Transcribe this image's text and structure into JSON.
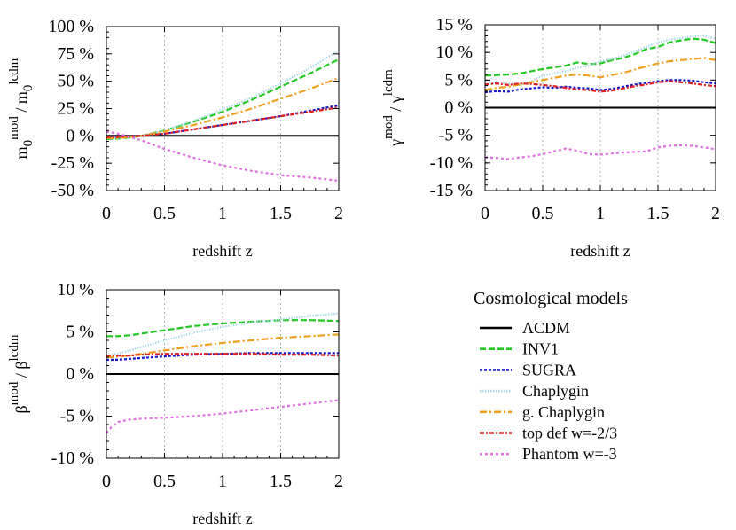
{
  "legend": {
    "title": "Cosmological models",
    "entries": [
      "ΛCDM",
      "INV1",
      "SUGRA",
      "Chaplygin",
      "g. Chaplygin",
      "top def w=-2/3",
      "Phantom w=-3"
    ]
  },
  "series_styles": [
    {
      "name": "ΛCDM",
      "color": "#000000",
      "dash": "none"
    },
    {
      "name": "INV1",
      "color": "#22c922",
      "dash": "7 3"
    },
    {
      "name": "SUGRA",
      "color": "#1818c8",
      "dash": "3 2"
    },
    {
      "name": "Chaplygin",
      "color": "#a8d8e8",
      "dash": "1.5 1.5"
    },
    {
      "name": "g. Chaplygin",
      "color": "#f0a020",
      "dash": "8 3 2 3"
    },
    {
      "name": "top def w=-2/3",
      "color": "#e02020",
      "dash": "5 2 2 2"
    },
    {
      "name": "Phantom w=-3",
      "color": "#e070e0",
      "dash": "3 3"
    }
  ],
  "chart_data": [
    {
      "type": "line",
      "xlabel": "redshift z",
      "ylabel": "m0 mod / m0 lcdm",
      "ylabel_parts": {
        "base1": "m",
        "sub1": "0",
        "sup1": "mod",
        "sep": " / ",
        "base2": "m",
        "sub2": "0",
        "sup2": "lcdm"
      },
      "xlim": [
        0,
        2
      ],
      "ylim": [
        -50,
        100
      ],
      "xticks": [
        0,
        0.5,
        1,
        1.5,
        2
      ],
      "xtick_labels": [
        "0",
        "0.5",
        "1",
        "1.5",
        "2"
      ],
      "yticks": [
        -50,
        -25,
        0,
        25,
        50,
        75,
        100
      ],
      "ytick_labels": [
        "-50 %",
        "-25 %",
        "0 %",
        "25 %",
        "50 %",
        "75 %",
        "100 %"
      ],
      "x": [
        0,
        0.1,
        0.2,
        0.3,
        0.5,
        0.75,
        1.0,
        1.25,
        1.5,
        1.75,
        2.0
      ],
      "series": [
        {
          "name": "ΛCDM",
          "values": [
            0,
            0,
            0,
            0,
            0,
            0,
            0,
            0,
            0,
            0,
            0
          ]
        },
        {
          "name": "INV1",
          "values": [
            -3,
            -2.5,
            -1.5,
            0,
            5,
            13,
            22,
            33,
            45,
            57,
            70
          ]
        },
        {
          "name": "SUGRA",
          "values": [
            -1,
            -1,
            -0.5,
            0,
            2,
            6,
            10,
            14,
            18,
            23,
            28
          ]
        },
        {
          "name": "Chaplygin",
          "values": [
            -2,
            -2,
            -1,
            0,
            5,
            14,
            24,
            35,
            48,
            62,
            78
          ]
        },
        {
          "name": "g. Chaplygin",
          "values": [
            -2,
            -2,
            -1,
            0,
            4,
            10,
            17,
            25,
            34,
            43,
            53
          ]
        },
        {
          "name": "top def w=-2/3",
          "values": [
            -1,
            -1,
            -0.5,
            0,
            2,
            6,
            10,
            14,
            18,
            22,
            26
          ]
        },
        {
          "name": "Phantom w=-3",
          "values": [
            4,
            2,
            -1,
            -4,
            -12,
            -20,
            -27,
            -32,
            -36,
            -38,
            -41
          ]
        }
      ]
    },
    {
      "type": "line",
      "xlabel": "redshift z",
      "ylabel": "γ mod / γ lcdm",
      "ylabel_parts": {
        "base1": "γ",
        "sub1": "",
        "sup1": "mod",
        "sep": " / ",
        "base2": "γ",
        "sub2": "",
        "sup2": "lcdm"
      },
      "xlim": [
        0,
        2
      ],
      "ylim": [
        -15,
        15
      ],
      "xticks": [
        0,
        0.5,
        1,
        1.5,
        2
      ],
      "xtick_labels": [
        "0",
        "0.5",
        "1",
        "1.5",
        "2"
      ],
      "yticks": [
        -15,
        -10,
        -5,
        0,
        5,
        10,
        15
      ],
      "ytick_labels": [
        "-15 %",
        "-10 %",
        "-5 %",
        "0 %",
        "5 %",
        "10 %",
        "15 %"
      ],
      "x": [
        0,
        0.1,
        0.2,
        0.3,
        0.4,
        0.5,
        0.6,
        0.7,
        0.8,
        0.9,
        1.0,
        1.1,
        1.2,
        1.3,
        1.4,
        1.5,
        1.6,
        1.7,
        1.8,
        1.9,
        2.0
      ],
      "series": [
        {
          "name": "ΛCDM",
          "values": [
            0,
            0,
            0,
            0,
            0,
            0,
            0,
            0,
            0,
            0,
            0,
            0,
            0,
            0,
            0,
            0,
            0,
            0,
            0,
            0,
            0
          ]
        },
        {
          "name": "INV1",
          "values": [
            5.8,
            5.9,
            6.0,
            6.2,
            6.6,
            7.0,
            7.3,
            7.6,
            8.2,
            7.9,
            8.0,
            8.6,
            9.0,
            9.7,
            10.6,
            11.0,
            11.8,
            12.2,
            12.5,
            12.3,
            11.7
          ]
        },
        {
          "name": "SUGRA",
          "values": [
            2.8,
            3.0,
            2.9,
            3.3,
            3.5,
            3.7,
            3.6,
            3.8,
            3.6,
            3.5,
            3.2,
            3.4,
            3.8,
            4.2,
            4.5,
            4.8,
            5.0,
            5.0,
            4.9,
            4.6,
            4.4
          ]
        },
        {
          "name": "Chaplygin",
          "values": [
            4.0,
            4.6,
            4.3,
            4.1,
            4.8,
            5.8,
            6.2,
            6.6,
            7.2,
            7.6,
            8.4,
            8.8,
            9.4,
            10.2,
            11.0,
            11.8,
            12.3,
            12.6,
            12.9,
            13.0,
            12.5
          ]
        },
        {
          "name": "g. Chaplygin",
          "values": [
            3.2,
            3.6,
            3.8,
            4.2,
            4.6,
            5.0,
            5.4,
            5.8,
            6.0,
            5.8,
            5.5,
            5.9,
            6.3,
            6.9,
            7.5,
            8.0,
            8.4,
            8.6,
            8.8,
            9.0,
            8.6
          ]
        },
        {
          "name": "top def w=-2/3",
          "values": [
            4.2,
            4.4,
            4.1,
            4.4,
            4.3,
            4.1,
            3.9,
            3.6,
            3.3,
            3.2,
            2.9,
            3.1,
            3.5,
            3.9,
            4.2,
            4.6,
            4.8,
            4.6,
            4.4,
            4.1,
            3.9
          ]
        },
        {
          "name": "Phantom w=-3",
          "values": [
            -9.0,
            -9.1,
            -9.3,
            -9.0,
            -8.8,
            -8.4,
            -7.9,
            -7.4,
            -7.8,
            -8.4,
            -8.5,
            -8.3,
            -8.1,
            -8.0,
            -7.9,
            -7.2,
            -6.9,
            -6.8,
            -6.9,
            -7.2,
            -7.5
          ]
        }
      ]
    },
    {
      "type": "line",
      "xlabel": "redshift z",
      "ylabel": "β mod / β lcdm",
      "ylabel_parts": {
        "base1": "β",
        "sub1": "",
        "sup1": "mod",
        "sep": " / ",
        "base2": "β",
        "sub2": "",
        "sup2": "lcdm"
      },
      "xlim": [
        0,
        2
      ],
      "ylim": [
        -10,
        10
      ],
      "xticks": [
        0,
        0.5,
        1,
        1.5,
        2
      ],
      "xtick_labels": [
        "0",
        "0.5",
        "1",
        "1.5",
        "2"
      ],
      "yticks": [
        -10,
        -5,
        0,
        5,
        10
      ],
      "ytick_labels": [
        "-10 %",
        "-5 %",
        "0 %",
        "5 %",
        "10 %"
      ],
      "x": [
        0,
        0.05,
        0.1,
        0.2,
        0.3,
        0.5,
        0.75,
        1.0,
        1.25,
        1.5,
        1.75,
        2.0
      ],
      "series": [
        {
          "name": "ΛCDM",
          "values": [
            0,
            0,
            0,
            0,
            0,
            0,
            0,
            0,
            0,
            0,
            0,
            0
          ]
        },
        {
          "name": "INV1",
          "values": [
            4.5,
            4.5,
            4.5,
            4.6,
            4.8,
            5.2,
            5.7,
            6.0,
            6.2,
            6.4,
            6.4,
            6.3
          ]
        },
        {
          "name": "SUGRA",
          "values": [
            1.7,
            1.7,
            1.7,
            1.8,
            1.9,
            2.1,
            2.3,
            2.4,
            2.5,
            2.5,
            2.5,
            2.5
          ]
        },
        {
          "name": "Chaplygin",
          "values": [
            2.2,
            2.3,
            2.4,
            2.8,
            3.2,
            4.0,
            4.9,
            5.6,
            6.1,
            6.5,
            6.9,
            7.2
          ]
        },
        {
          "name": "g. Chaplygin",
          "values": [
            2.0,
            2.0,
            2.1,
            2.2,
            2.4,
            2.8,
            3.3,
            3.7,
            4.0,
            4.3,
            4.5,
            4.7
          ]
        },
        {
          "name": "top def w=-2/3",
          "values": [
            2.2,
            2.2,
            2.2,
            2.2,
            2.3,
            2.4,
            2.4,
            2.4,
            2.4,
            2.3,
            2.3,
            2.2
          ]
        },
        {
          "name": "Phantom w=-3",
          "values": [
            -7.0,
            -6.2,
            -5.7,
            -5.4,
            -5.3,
            -5.2,
            -5.0,
            -4.7,
            -4.3,
            -3.9,
            -3.5,
            -3.1
          ]
        }
      ]
    }
  ]
}
